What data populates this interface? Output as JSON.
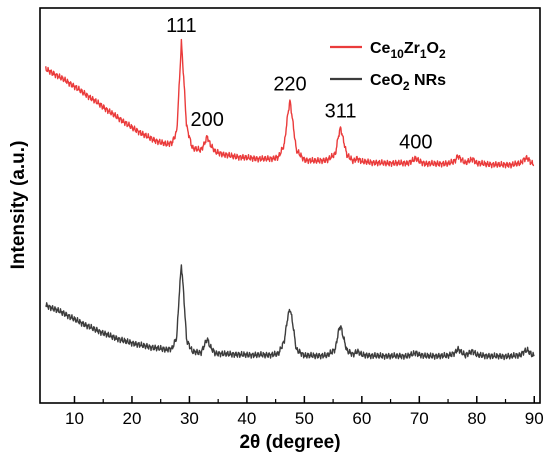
{
  "chart_data": {
    "type": "line",
    "xlabel": "2θ (degree)",
    "ylabel": "Intensity (a.u.)",
    "xlim": [
      4,
      91
    ],
    "x_ticks": [
      10,
      20,
      30,
      40,
      50,
      60,
      70,
      80,
      90
    ],
    "y_ticks_shown": false,
    "legend_position": "top-right",
    "legend": [
      {
        "series": "red",
        "base": "Ce",
        "sub1": "10",
        "mid": "Zr",
        "sub2": "1",
        "mid2": "O",
        "sub3": "2",
        "suffix": ""
      },
      {
        "series": "dark",
        "base": "CeO",
        "sub1": "2",
        "mid": "",
        "sub2": "",
        "mid2": "",
        "sub3": "",
        "suffix": " NRs"
      }
    ],
    "peak_labels": [
      {
        "text": "111",
        "x": 28.6
      },
      {
        "text": "200",
        "x": 33.1
      },
      {
        "text": "220",
        "x": 47.5
      },
      {
        "text": "311",
        "x": 56.3
      },
      {
        "text": "400",
        "x": 69.4
      }
    ],
    "series": [
      {
        "key": "red",
        "color": "#ea3b3b",
        "x": [
          5,
          8,
          10,
          12,
          14,
          16,
          18,
          20,
          22,
          24,
          26,
          27,
          27.8,
          28.2,
          28.6,
          29.0,
          29.5,
          30.5,
          32.0,
          32.6,
          33.1,
          33.6,
          34.5,
          36,
          38,
          40,
          42,
          44,
          45.5,
          46.5,
          47.1,
          47.5,
          47.9,
          48.6,
          50,
          52,
          54,
          55.4,
          55.9,
          56.3,
          56.7,
          57.4,
          58.5,
          59.2,
          60,
          62,
          64,
          66,
          68,
          69.0,
          69.4,
          69.9,
          71,
          73,
          75,
          76.2,
          76.7,
          77.2,
          78,
          78.8,
          79.3,
          80,
          82,
          84,
          86,
          87.6,
          88.3,
          88.8,
          89.5,
          90
        ],
        "y": [
          22.0,
          20.2,
          18.8,
          17.3,
          15.8,
          14.2,
          12.7,
          11.2,
          9.9,
          8.8,
          8.1,
          8.4,
          10.5,
          18.5,
          27.0,
          20.5,
          11.5,
          7.4,
          7.0,
          8.2,
          9.6,
          8.1,
          6.7,
          6.2,
          5.8,
          5.6,
          5.4,
          5.4,
          5.7,
          8.0,
          13.5,
          16.2,
          13.0,
          7.0,
          5.2,
          5.0,
          5.2,
          6.3,
          9.5,
          11.2,
          9.3,
          6.1,
          5.0,
          5.5,
          4.9,
          4.7,
          4.6,
          4.6,
          4.6,
          5.2,
          5.5,
          5.0,
          4.5,
          4.5,
          4.5,
          5.0,
          6.0,
          5.4,
          4.6,
          5.1,
          5.4,
          4.6,
          4.4,
          4.3,
          4.3,
          4.6,
          5.4,
          5.6,
          4.6,
          4.4
        ]
      },
      {
        "key": "dark",
        "color": "#3c3c3c",
        "x": [
          5,
          8,
          10,
          12,
          14,
          16,
          18,
          20,
          22,
          24,
          26,
          27,
          27.8,
          28.2,
          28.6,
          29.0,
          29.5,
          30.5,
          32.0,
          32.6,
          33.1,
          33.6,
          34.5,
          36,
          38,
          40,
          42,
          44,
          45.5,
          46.5,
          47.1,
          47.5,
          47.9,
          48.6,
          50,
          52,
          54,
          55.4,
          55.9,
          56.3,
          56.7,
          57.4,
          58.5,
          59.2,
          60,
          62,
          64,
          66,
          68,
          69.0,
          69.4,
          69.9,
          71,
          73,
          75,
          76.2,
          76.7,
          77.2,
          78,
          78.8,
          79.3,
          80,
          82,
          84,
          86,
          87.6,
          88.3,
          88.8,
          89.5,
          90
        ],
        "y": [
          9.4,
          8.0,
          6.8,
          5.7,
          4.7,
          3.8,
          3.0,
          2.4,
          1.9,
          1.5,
          1.2,
          1.4,
          3.5,
          11.0,
          17.0,
          11.5,
          3.0,
          0.8,
          0.6,
          2.0,
          3.2,
          1.7,
          0.5,
          0.4,
          0.3,
          0.2,
          0.2,
          0.2,
          0.4,
          2.8,
          7.2,
          8.8,
          6.6,
          1.2,
          0.1,
          0.05,
          0.1,
          1.3,
          4.4,
          5.7,
          3.8,
          1.0,
          0.3,
          0.9,
          0.2,
          0.05,
          0.0,
          0.0,
          0.0,
          0.4,
          0.6,
          0.3,
          0.0,
          0.0,
          0.05,
          0.6,
          1.3,
          0.8,
          0.1,
          0.7,
          0.9,
          0.2,
          0.0,
          -0.05,
          -0.05,
          0.2,
          0.9,
          1.1,
          0.3,
          0.0
        ]
      }
    ]
  }
}
